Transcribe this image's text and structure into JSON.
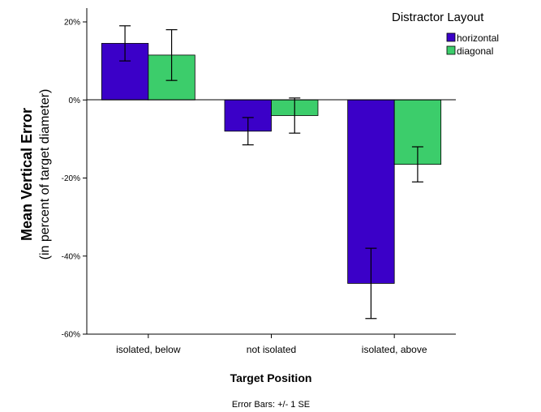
{
  "chart_data": {
    "type": "bar",
    "categories": [
      "isolated, below",
      "not isolated",
      "isolated, above"
    ],
    "series": [
      {
        "name": "horizontal",
        "color": "#3b00c8",
        "values": [
          14.5,
          -8,
          -47
        ],
        "error": [
          4.5,
          3.5,
          9
        ]
      },
      {
        "name": "diagonal",
        "color": "#3ccd6b",
        "values": [
          11.5,
          -4,
          -16.5
        ],
        "error": [
          6.5,
          4.5,
          4.5
        ]
      }
    ],
    "ylim": [
      -60,
      20
    ],
    "yticks": [
      20,
      0,
      -20,
      -40,
      -60
    ],
    "ytick_labels": [
      "20%",
      "0%",
      "-20%",
      "-40%",
      "-60%"
    ],
    "xlabel": "Target Position",
    "ylabel": "Mean Vertical Error",
    "ylabel_sub": "(in percent of target diameter)",
    "legend_title": "Distractor Layout",
    "legend_position": "top-right",
    "footnote": "Error Bars: +/- 1 SE",
    "grid": false
  }
}
